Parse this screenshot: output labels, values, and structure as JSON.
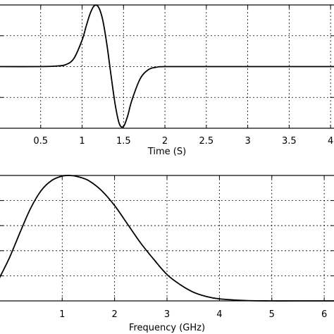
{
  "chart_data": [
    {
      "type": "line",
      "title": "",
      "xlabel": "Time (S)",
      "ylabel": "",
      "xlim": [
        0.0,
        4.05
      ],
      "ylim": [
        -1.0,
        1.0
      ],
      "x_ticks": [
        0.5,
        1,
        1.5,
        2,
        2.5,
        3,
        3.5,
        4
      ],
      "x_tick_labels": [
        "0.5",
        "1",
        "1.5",
        "2",
        "2.5",
        "3",
        "3.5",
        "4"
      ],
      "y_ticks": [
        -1.0,
        -0.5,
        0.0,
        0.5,
        1.0
      ],
      "y_tick_labels": [],
      "grid": true,
      "series": [
        {
          "values": {
            "x": [
              0,
              0.5,
              0.7,
              0.8,
              0.9,
              1.0,
              1.05,
              1.1,
              1.15,
              1.2,
              1.25,
              1.3,
              1.35,
              1.4,
              1.45,
              1.5,
              1.55,
              1.6,
              1.7,
              1.8,
              1.9,
              2.0,
              2.5,
              3.0,
              3.5,
              4.05
            ],
            "y": [
              0.0,
              0.0,
              0.01,
              0.03,
              0.13,
              0.43,
              0.66,
              0.87,
              0.99,
              0.96,
              0.75,
              0.35,
              -0.15,
              -0.62,
              -0.93,
              -0.97,
              -0.8,
              -0.55,
              -0.2,
              -0.05,
              -0.01,
              0.0,
              0.0,
              0.0,
              0.0,
              0.0
            ]
          }
        }
      ]
    },
    {
      "type": "line",
      "title": "",
      "xlabel": "Frequency (GHz)",
      "ylabel": "",
      "xlim": [
        -0.2,
        6.2
      ],
      "ylim": [
        0.0,
        1.0
      ],
      "x_ticks": [
        1,
        2,
        3,
        4,
        5,
        6
      ],
      "x_tick_labels": [
        "1",
        "2",
        "3",
        "4",
        "5",
        "6"
      ],
      "y_ticks": [
        0.0,
        0.2,
        0.4,
        0.6,
        0.8,
        1.0
      ],
      "y_tick_labels": [],
      "grid": true,
      "series": [
        {
          "values": {
            "x": [
              -0.2,
              0,
              0.2,
              0.4,
              0.6,
              0.8,
              1.0,
              1.15,
              1.3,
              1.5,
              1.75,
              2.0,
              2.25,
              2.5,
              2.75,
              3.0,
              3.25,
              3.5,
              3.75,
              4.0,
              4.5,
              5.0,
              5.5,
              6.2
            ],
            "y": [
              0.18,
              0.35,
              0.55,
              0.74,
              0.88,
              0.96,
              0.995,
              1.0,
              0.99,
              0.96,
              0.88,
              0.76,
              0.61,
              0.46,
              0.33,
              0.21,
              0.13,
              0.07,
              0.035,
              0.016,
              0.003,
              0.0,
              0.0,
              0.0
            ]
          }
        }
      ]
    }
  ]
}
